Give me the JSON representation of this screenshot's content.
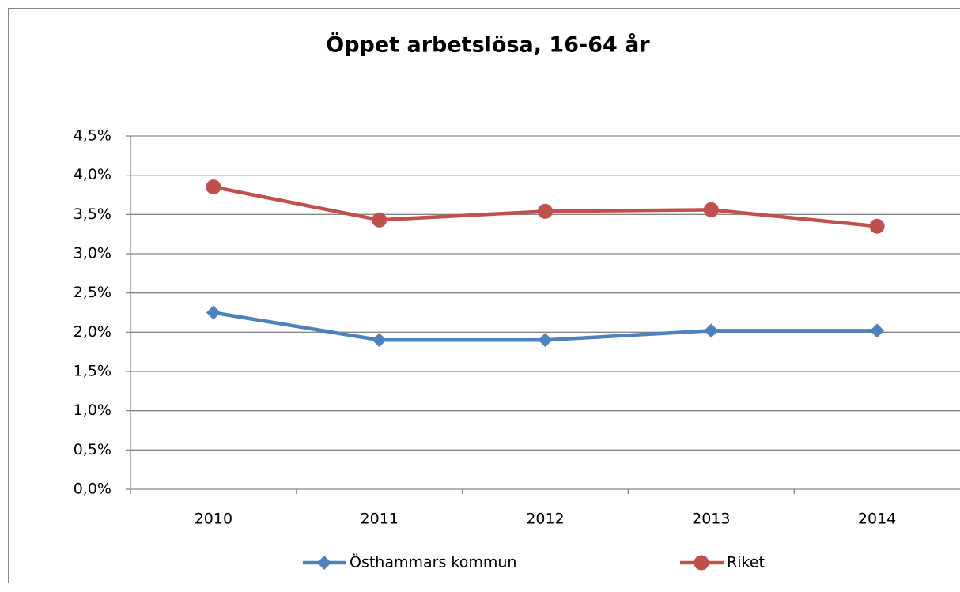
{
  "chart_data": {
    "type": "line",
    "title": "Öppet arbetslösa, 16-64 år",
    "categories": [
      "2010",
      "2011",
      "2012",
      "2013",
      "2014"
    ],
    "series": [
      {
        "name": "Östhammars kommun",
        "color": "#4f81bd",
        "marker": "diamond",
        "values": [
          2.25,
          1.9,
          1.9,
          2.02,
          2.02
        ]
      },
      {
        "name": "Riket",
        "color": "#c0504d",
        "marker": "circle",
        "values": [
          3.85,
          3.43,
          3.54,
          3.56,
          3.35
        ]
      }
    ],
    "ylim": [
      0,
      4.5
    ],
    "yticks": [
      {
        "value": 0,
        "label": "0,0%"
      },
      {
        "value": 0.5,
        "label": "0,5%"
      },
      {
        "value": 1,
        "label": "1,0%"
      },
      {
        "value": 1.5,
        "label": "1,5%"
      },
      {
        "value": 2,
        "label": "2,0%"
      },
      {
        "value": 2.5,
        "label": "2,5%"
      },
      {
        "value": 3,
        "label": "3,0%"
      },
      {
        "value": 3.5,
        "label": "3,5%"
      },
      {
        "value": 4,
        "label": "4,0%"
      },
      {
        "value": 4.5,
        "label": "4,5%"
      }
    ],
    "grid": true,
    "legend": "bottom"
  }
}
